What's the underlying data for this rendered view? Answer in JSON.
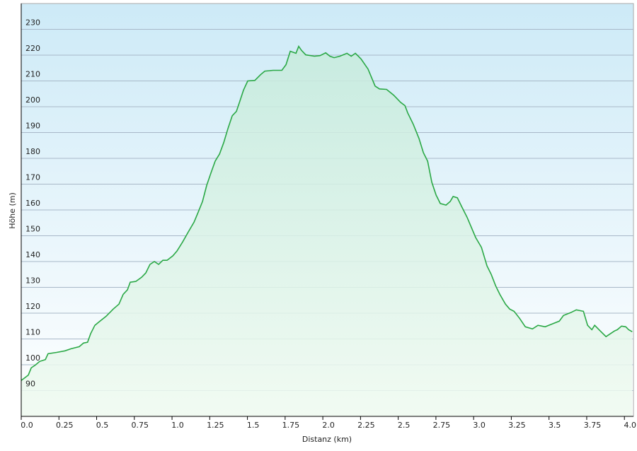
{
  "chart_data": {
    "type": "area",
    "xlabel": "Distanz (km)",
    "ylabel": "Höhe (m)",
    "color": "#2aa845",
    "grid": true,
    "xlim": [
      0,
      4.06
    ],
    "ylim": [
      80,
      240
    ],
    "xticks": [
      {
        "value": 0,
        "label": "0.0"
      },
      0.25,
      0.5,
      0.75,
      {
        "value": 1,
        "label": "1.0"
      },
      1.25,
      1.5,
      1.75,
      {
        "value": 2,
        "label": "2.0"
      },
      2.25,
      2.5,
      2.75,
      {
        "value": 3,
        "label": "3.0"
      },
      3.25,
      3.5,
      3.75,
      {
        "value": 4,
        "label": "4.0"
      }
    ],
    "yticks": [
      90,
      100,
      110,
      120,
      130,
      140,
      150,
      160,
      170,
      180,
      190,
      200,
      210,
      220,
      230
    ],
    "x": [
      0,
      0.047,
      0.066,
      0.094,
      0.122,
      0.16,
      0.178,
      0.235,
      0.29,
      0.33,
      0.385,
      0.413,
      0.44,
      0.46,
      0.488,
      0.516,
      0.563,
      0.61,
      0.648,
      0.676,
      0.704,
      0.723,
      0.76,
      0.798,
      0.826,
      0.854,
      0.883,
      0.911,
      0.939,
      0.967,
      1.005,
      1.033,
      1.07,
      1.108,
      1.146,
      1.174,
      1.202,
      1.23,
      1.258,
      1.286,
      1.315,
      1.343,
      1.371,
      1.399,
      1.427,
      1.446,
      1.474,
      1.502,
      1.549,
      1.587,
      1.615,
      1.671,
      1.728,
      1.756,
      1.784,
      1.822,
      1.84,
      1.859,
      1.887,
      1.944,
      1.981,
      2.019,
      2.047,
      2.075,
      2.113,
      2.16,
      2.188,
      2.216,
      2.254,
      2.3,
      2.347,
      2.376,
      2.423,
      2.47,
      2.516,
      2.545,
      2.563,
      2.6,
      2.638,
      2.667,
      2.695,
      2.723,
      2.751,
      2.779,
      2.817,
      2.845,
      2.864,
      2.892,
      2.92,
      2.958,
      2.986,
      3.014,
      3.052,
      3.089,
      3.117,
      3.146,
      3.174,
      3.211,
      3.239,
      3.268,
      3.305,
      3.343,
      3.39,
      3.427,
      3.474,
      3.521,
      3.568,
      3.596,
      3.643,
      3.681,
      3.728,
      3.756,
      3.784,
      3.803,
      3.84,
      3.878,
      3.906,
      3.934,
      3.953,
      3.981,
      4.009,
      4.028,
      4.052
    ],
    "y": [
      93.9,
      96,
      98.8,
      99.9,
      101.3,
      102,
      104.3,
      104.8,
      105.4,
      106.2,
      107,
      108.4,
      108.7,
      112,
      115.3,
      116.6,
      118.8,
      121.6,
      123.5,
      127.3,
      129,
      132,
      132.3,
      133.9,
      135.6,
      138.9,
      140,
      138.9,
      140.5,
      140.5,
      142.2,
      144.1,
      147.6,
      151.5,
      155.3,
      159.2,
      163.3,
      169.6,
      174.3,
      178.9,
      181.7,
      186.1,
      191.6,
      196.5,
      198.2,
      201.5,
      206.4,
      210,
      210.2,
      212.4,
      213.8,
      214.1,
      214.1,
      216.3,
      221.5,
      220.7,
      223.4,
      221.8,
      220.1,
      219.6,
      219.8,
      220.9,
      219.6,
      219,
      219.6,
      220.7,
      219.6,
      220.7,
      218.5,
      214.6,
      208,
      206.9,
      206.7,
      204.5,
      201.7,
      200.4,
      197.6,
      193.2,
      187.7,
      182.2,
      178.9,
      170.7,
      165.8,
      162.5,
      161.9,
      163.3,
      165.2,
      164.7,
      161.4,
      157,
      153.1,
      149.3,
      145.5,
      138.3,
      135,
      130.6,
      127.3,
      123.5,
      121.6,
      120.7,
      118,
      114.7,
      113.9,
      115.3,
      114.7,
      115.8,
      116.9,
      119.1,
      120.2,
      121.3,
      120.7,
      115.3,
      113.6,
      115.3,
      113.1,
      110.9,
      112,
      113.1,
      113.6,
      115,
      114.7,
      113.6,
      112.8
    ]
  }
}
